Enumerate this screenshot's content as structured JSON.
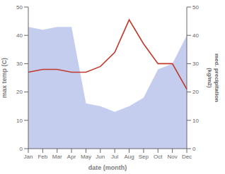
{
  "chart_data": {
    "type": "line",
    "categories": [
      "Jan",
      "Feb",
      "Mar",
      "Apr",
      "May",
      "Jun",
      "Jul",
      "Aug",
      "Sep",
      "Oct",
      "Nov",
      "Dec"
    ],
    "series": [
      {
        "type": "area",
        "axis": "y2",
        "color": "#b0bce8",
        "values": [
          43.0,
          42.0,
          43.0,
          43.0,
          16.0,
          15.0,
          13.0,
          15.0,
          18.0,
          28.0,
          30.0,
          40.0
        ]
      },
      {
        "type": "line",
        "color": "#c0392b",
        "values": [
          27.0,
          28.0,
          28.0,
          27.0,
          27.0,
          29.0,
          34.0,
          45.5,
          37.0,
          30.0,
          30.0,
          21.0
        ]
      }
    ],
    "xlabel": "date (month)",
    "ylabel": "max temp (C)",
    "y2label": "med. precipitation\n(kg/m2)",
    "ylim": [
      0,
      50
    ],
    "yticks": [
      0,
      10,
      20,
      30,
      40,
      50
    ],
    "y2lim": [
      0,
      50
    ],
    "y2ticks": [
      0,
      10,
      20,
      30,
      40,
      50
    ]
  }
}
